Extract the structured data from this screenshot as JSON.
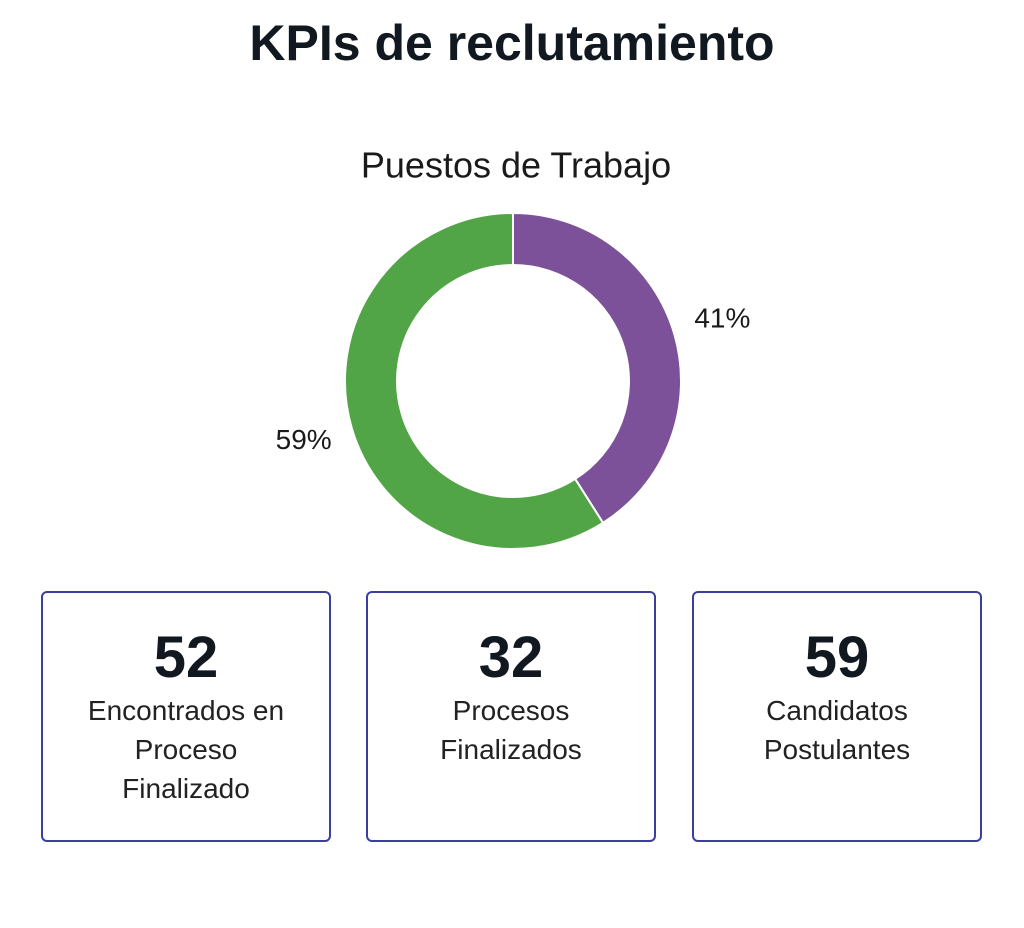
{
  "header": {
    "title": "KPIs de reclutamiento"
  },
  "chart_data": {
    "type": "pie",
    "title": "Puestos de Trabajo",
    "values": [
      41,
      59
    ],
    "value_labels": [
      "41%",
      "59%"
    ],
    "colors": [
      "#7d5199",
      "#52a546"
    ],
    "donut": true
  },
  "kpis": [
    {
      "value": 52,
      "lines": [
        "Encontrados en",
        "Proceso",
        "Finalizado"
      ]
    },
    {
      "value": 32,
      "lines": [
        "Procesos",
        "Finalizados"
      ]
    },
    {
      "value": 59,
      "lines": [
        "Candidatos",
        "Postulantes"
      ]
    }
  ]
}
